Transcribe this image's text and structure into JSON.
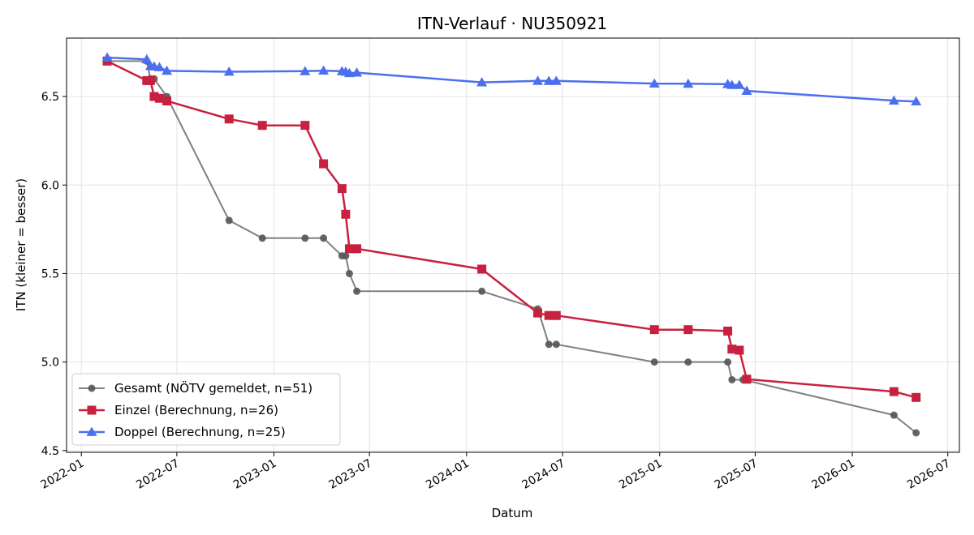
{
  "chart_data": {
    "type": "line",
    "title": "ITN-Verlauf · NU350921",
    "xlabel": "Datum",
    "ylabel": "ITN  (kleiner = besser)",
    "x_ticks": [
      "2022-01",
      "2022-07",
      "2023-01",
      "2023-07",
      "2024-01",
      "2024-07",
      "2025-01",
      "2025-07",
      "2026-01",
      "2026-07"
    ],
    "y_ticks": [
      "4.5",
      "5.0",
      "5.5",
      "6.0",
      "6.5"
    ],
    "xlim": [
      "2021-12-04",
      "2026-07-23"
    ],
    "ylim": [
      4.49,
      6.83
    ],
    "grid": true,
    "legend_position": "bottom-left",
    "series": [
      {
        "name": "Gesamt (NÖTV gemeldet, n=51)",
        "color": "#555555",
        "marker": "circle",
        "points": [
          [
            "2022-02-19",
            6.7
          ],
          [
            "2022-05-05",
            6.7
          ],
          [
            "2022-05-12",
            6.6
          ],
          [
            "2022-05-19",
            6.6
          ],
          [
            "2022-06-12",
            6.5
          ],
          [
            "2022-10-08",
            5.8
          ],
          [
            "2022-12-10",
            5.7
          ],
          [
            "2023-03-01",
            5.7
          ],
          [
            "2023-04-05",
            5.7
          ],
          [
            "2023-05-10",
            5.6
          ],
          [
            "2023-05-17",
            5.6
          ],
          [
            "2023-05-24",
            5.5
          ],
          [
            "2023-06-07",
            5.4
          ],
          [
            "2024-01-30",
            5.4
          ],
          [
            "2024-05-15",
            5.3
          ],
          [
            "2024-06-05",
            5.1
          ],
          [
            "2024-06-19",
            5.1
          ],
          [
            "2024-12-22",
            5.0
          ],
          [
            "2025-02-24",
            5.0
          ],
          [
            "2025-05-10",
            5.0
          ],
          [
            "2025-05-18",
            4.9
          ],
          [
            "2025-06-08",
            4.9
          ],
          [
            "2026-03-21",
            4.7
          ],
          [
            "2026-05-02",
            4.6
          ]
        ]
      },
      {
        "name": "Einzel (Berechnung, n=26)",
        "color": "#c8213f",
        "marker": "square",
        "points": [
          [
            "2022-02-19",
            6.7
          ],
          [
            "2022-05-05",
            6.59
          ],
          [
            "2022-05-12",
            6.59
          ],
          [
            "2022-05-19",
            6.5
          ],
          [
            "2022-05-29",
            6.49
          ],
          [
            "2022-06-12",
            6.475
          ],
          [
            "2022-10-08",
            6.373
          ],
          [
            "2022-12-10",
            6.337
          ],
          [
            "2023-03-01",
            6.337
          ],
          [
            "2023-04-05",
            6.12
          ],
          [
            "2023-05-10",
            5.98
          ],
          [
            "2023-05-17",
            5.835
          ],
          [
            "2023-05-24",
            5.64
          ],
          [
            "2023-06-07",
            5.64
          ],
          [
            "2024-01-30",
            5.525
          ],
          [
            "2024-05-15",
            5.277
          ],
          [
            "2024-06-05",
            5.263
          ],
          [
            "2024-06-19",
            5.263
          ],
          [
            "2024-12-22",
            5.183
          ],
          [
            "2025-02-24",
            5.183
          ],
          [
            "2025-05-10",
            5.175
          ],
          [
            "2025-05-18",
            5.073
          ],
          [
            "2025-06-01",
            5.067
          ],
          [
            "2025-06-15",
            4.903
          ],
          [
            "2026-03-21",
            4.833
          ],
          [
            "2026-05-02",
            4.8
          ]
        ]
      },
      {
        "name": "Doppel (Berechnung, n=25)",
        "color": "#4c6ff0",
        "marker": "triangle",
        "points": [
          [
            "2022-02-19",
            6.72
          ],
          [
            "2022-05-05",
            6.71
          ],
          [
            "2022-05-12",
            6.672
          ],
          [
            "2022-05-19",
            6.67
          ],
          [
            "2022-05-29",
            6.665
          ],
          [
            "2022-06-12",
            6.645
          ],
          [
            "2022-10-08",
            6.64
          ],
          [
            "2023-03-01",
            6.643
          ],
          [
            "2023-04-05",
            6.646
          ],
          [
            "2023-05-10",
            6.643
          ],
          [
            "2023-05-17",
            6.64
          ],
          [
            "2023-05-24",
            6.632
          ],
          [
            "2023-06-07",
            6.635
          ],
          [
            "2024-01-30",
            6.58
          ],
          [
            "2024-05-15",
            6.588
          ],
          [
            "2024-06-05",
            6.588
          ],
          [
            "2024-06-19",
            6.588
          ],
          [
            "2024-12-22",
            6.573
          ],
          [
            "2025-02-24",
            6.572
          ],
          [
            "2025-05-10",
            6.57
          ],
          [
            "2025-05-18",
            6.565
          ],
          [
            "2025-06-01",
            6.565
          ],
          [
            "2025-06-15",
            6.532
          ],
          [
            "2026-03-21",
            6.477
          ],
          [
            "2026-05-02",
            6.472
          ]
        ]
      }
    ]
  }
}
